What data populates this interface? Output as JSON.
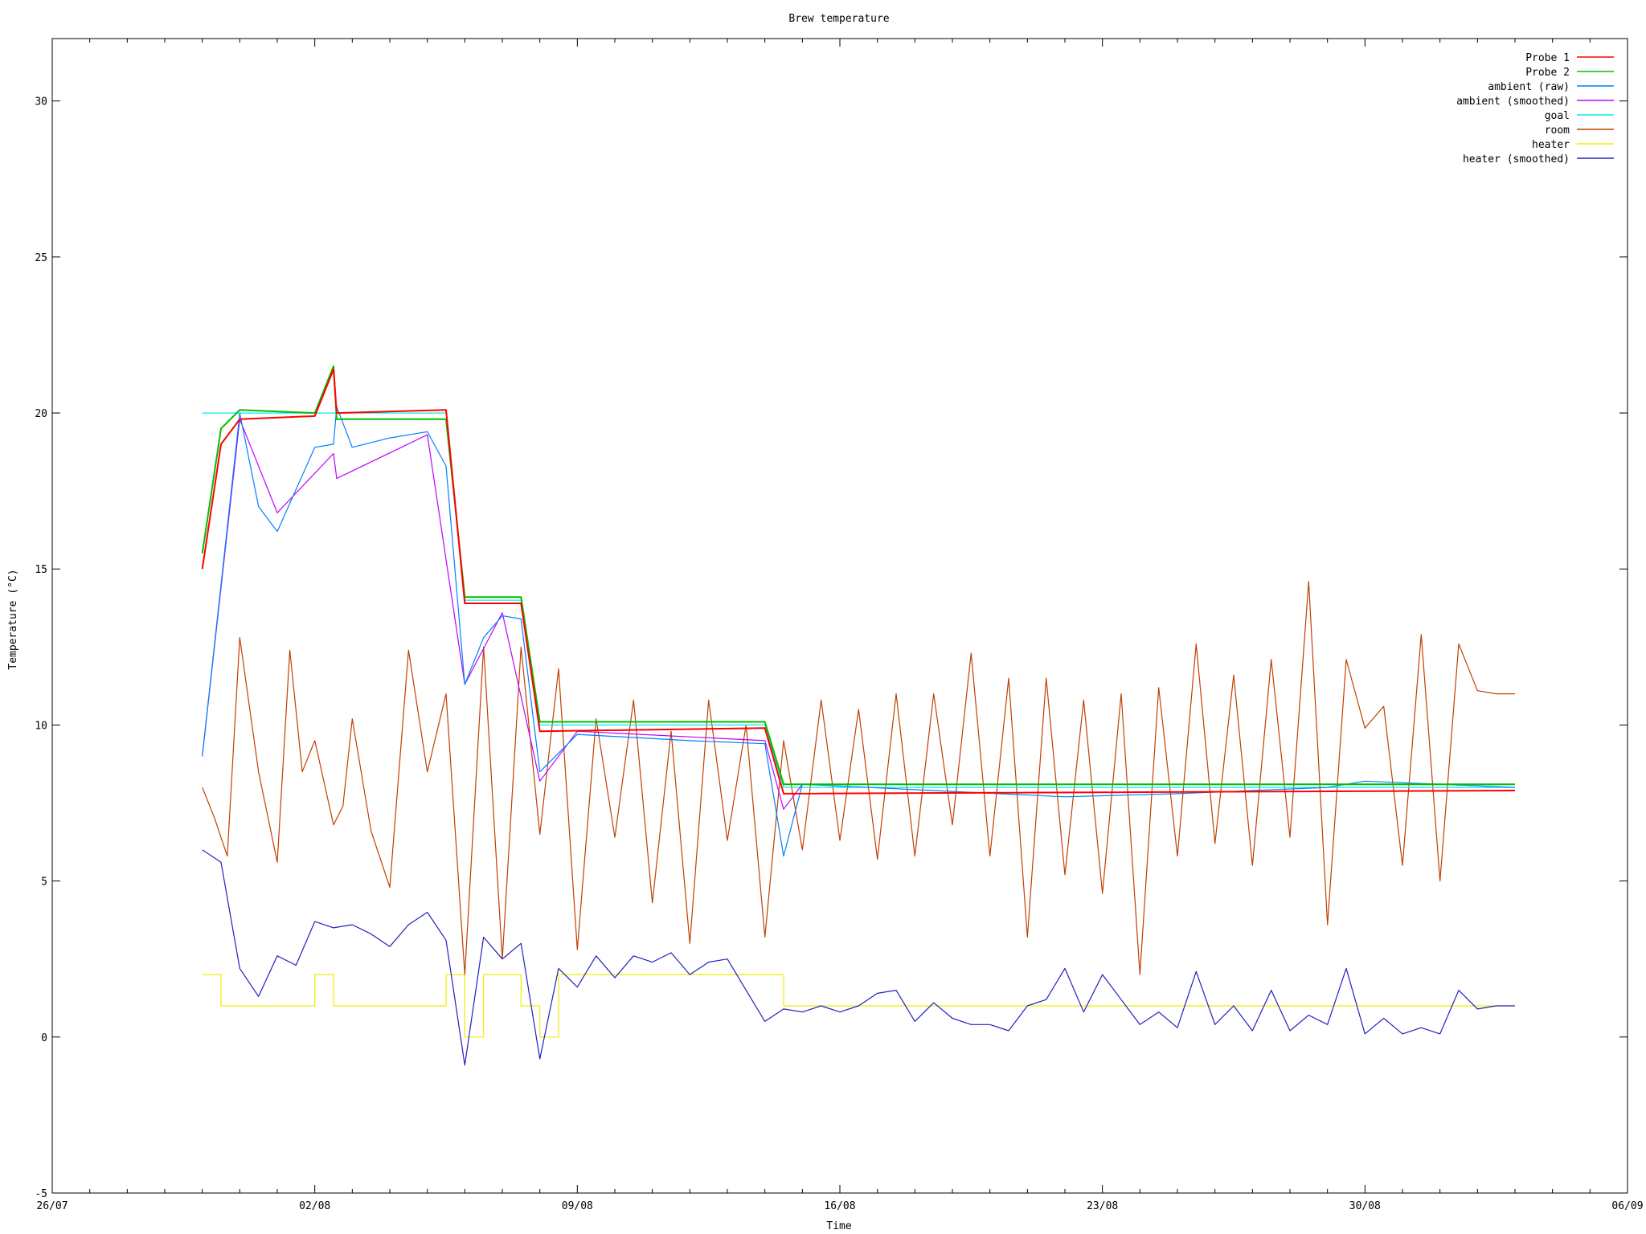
{
  "chart_data": {
    "type": "line",
    "title": "Brew temperature",
    "xlabel": "Time",
    "ylabel": "Temperature (°C)",
    "xlim": [
      "2013-07-26",
      "2013-09-06"
    ],
    "ylim": [
      -5,
      32
    ],
    "x_ticks": [
      "26/07",
      "02/08",
      "09/08",
      "16/08",
      "23/08",
      "30/08",
      "06/09"
    ],
    "y_ticks": [
      -5,
      0,
      5,
      10,
      15,
      20,
      25,
      30
    ],
    "grid": false,
    "legend_position": "top-right",
    "colors": {
      "probe1": "#ff0000",
      "probe2": "#00c000",
      "ambient_raw": "#0080ff",
      "ambient_smoothed": "#c000ff",
      "goal": "#00eeee",
      "room": "#c04000",
      "heater": "#eeee00",
      "heater_smoothed": "#2020c0"
    },
    "series": [
      {
        "name": "Probe 1",
        "x": [
          "2013-07-30",
          "2013-07-30 12:00",
          "2013-07-31",
          "2013-08-02",
          "2013-08-02 12:00",
          "2013-08-02 14:00",
          "2013-08-05 12:00",
          "2013-08-06",
          "2013-08-07 12:00",
          "2013-08-08",
          "2013-08-14",
          "2013-08-14 12:00",
          "2013-09-03"
        ],
        "values": [
          15,
          19,
          19.8,
          19.9,
          21.4,
          20,
          20.1,
          13.9,
          13.9,
          9.8,
          9.9,
          7.8,
          7.9
        ]
      },
      {
        "name": "Probe 2",
        "x": [
          "2013-07-30",
          "2013-07-30 12:00",
          "2013-07-31",
          "2013-08-02",
          "2013-08-02 12:00",
          "2013-08-02 14:00",
          "2013-08-05 12:00",
          "2013-08-06",
          "2013-08-07 12:00",
          "2013-08-08",
          "2013-08-14",
          "2013-08-14 12:00",
          "2013-09-03"
        ],
        "values": [
          15.5,
          19.5,
          20.1,
          20,
          21.5,
          19.8,
          19.8,
          14.1,
          14.1,
          10.1,
          10.1,
          8.1,
          8.1
        ]
      },
      {
        "name": "ambient (raw)",
        "x": [
          "2013-07-30",
          "2013-07-31",
          "2013-07-31 12:00",
          "2013-08-01",
          "2013-08-02",
          "2013-08-02 12:00",
          "2013-08-02 14:00",
          "2013-08-03",
          "2013-08-04",
          "2013-08-05",
          "2013-08-05 12:00",
          "2013-08-06",
          "2013-08-06 12:00",
          "2013-08-07",
          "2013-08-07 12:00",
          "2013-08-08",
          "2013-08-09",
          "2013-08-12",
          "2013-08-14",
          "2013-08-14 12:00",
          "2013-08-15",
          "2013-08-22",
          "2013-08-25",
          "2013-08-29",
          "2013-08-30",
          "2013-09-03"
        ],
        "values": [
          9,
          20,
          17,
          16.2,
          18.9,
          19,
          20.2,
          18.9,
          19.2,
          19.4,
          18.3,
          11.3,
          12.8,
          13.5,
          13.4,
          8.5,
          9.7,
          9.5,
          9.4,
          5.8,
          8.1,
          7.7,
          7.8,
          8,
          8.2,
          8
        ]
      },
      {
        "name": "ambient (smoothed)",
        "x": [
          "2013-07-30",
          "2013-07-31",
          "2013-08-01",
          "2013-08-02 12:00",
          "2013-08-02 14:00",
          "2013-08-05",
          "2013-08-06",
          "2013-08-07",
          "2013-08-08",
          "2013-08-09",
          "2013-08-14",
          "2013-08-14 12:00",
          "2013-08-15",
          "2013-09-03"
        ],
        "values": [
          9,
          19.8,
          16.8,
          18.7,
          17.9,
          19.3,
          11.3,
          13.6,
          8.2,
          9.8,
          9.5,
          7.3,
          8.1,
          8.1
        ]
      },
      {
        "name": "goal",
        "x": [
          "2013-07-30",
          "2013-08-05 12:00",
          "2013-08-06",
          "2013-08-07 12:00",
          "2013-08-08",
          "2013-08-14",
          "2013-08-14 12:00",
          "2013-09-03"
        ],
        "values": [
          20,
          20,
          14,
          14,
          10,
          10,
          8,
          8
        ]
      },
      {
        "name": "room",
        "x": [
          "2013-07-30",
          "2013-07-30 08:00",
          "2013-07-30 16:00",
          "2013-07-31",
          "2013-07-31 12:00",
          "2013-08-01",
          "2013-08-01 08:00",
          "2013-08-01 16:00",
          "2013-08-02",
          "2013-08-02 12:00",
          "2013-08-02 18:00",
          "2013-08-03",
          "2013-08-03 12:00",
          "2013-08-04",
          "2013-08-04 12:00",
          "2013-08-05",
          "2013-08-05 12:00",
          "2013-08-06",
          "2013-08-06 12:00",
          "2013-08-07",
          "2013-08-07 12:00",
          "2013-08-08",
          "2013-08-08 12:00",
          "2013-08-09",
          "2013-08-09 12:00",
          "2013-08-10",
          "2013-08-10 12:00",
          "2013-08-11",
          "2013-08-11 12:00",
          "2013-08-12",
          "2013-08-12 12:00",
          "2013-08-13",
          "2013-08-13 12:00",
          "2013-08-14",
          "2013-08-14 12:00",
          "2013-08-15",
          "2013-08-15 12:00",
          "2013-08-16",
          "2013-08-16 12:00",
          "2013-08-17",
          "2013-08-17 12:00",
          "2013-08-18",
          "2013-08-18 12:00",
          "2013-08-19",
          "2013-08-19 12:00",
          "2013-08-20",
          "2013-08-20 12:00",
          "2013-08-21",
          "2013-08-21 12:00",
          "2013-08-22",
          "2013-08-22 12:00",
          "2013-08-23",
          "2013-08-23 12:00",
          "2013-08-24",
          "2013-08-24 12:00",
          "2013-08-25",
          "2013-08-25 12:00",
          "2013-08-26",
          "2013-08-26 12:00",
          "2013-08-27",
          "2013-08-27 12:00",
          "2013-08-28",
          "2013-08-28 12:00",
          "2013-08-29",
          "2013-08-29 12:00",
          "2013-08-30",
          "2013-08-30 12:00",
          "2013-08-31",
          "2013-08-31 12:00",
          "2013-09-01",
          "2013-09-01 12:00",
          "2013-09-02",
          "2013-09-02 12:00",
          "2013-09-03"
        ],
        "values": [
          8,
          7,
          5.8,
          12.8,
          8.5,
          5.6,
          12.4,
          8.5,
          9.5,
          6.8,
          7.4,
          10.2,
          6.6,
          4.8,
          12.4,
          8.5,
          11,
          2,
          12.5,
          2.5,
          12.5,
          6.5,
          11.8,
          2.8,
          10.2,
          6.4,
          10.8,
          4.3,
          9.8,
          3,
          10.8,
          6.3,
          10,
          3.2,
          9.5,
          6,
          10.8,
          6.3,
          10.5,
          5.7,
          11,
          5.8,
          11,
          6.8,
          12.3,
          5.8,
          11.5,
          3.2,
          11.5,
          5.2,
          10.8,
          4.6,
          11,
          2,
          11.2,
          5.8,
          12.6,
          6.2,
          11.6,
          5.5,
          12.1,
          6.4,
          14.6,
          3.6,
          12.1,
          9.9,
          10.6,
          5.5,
          12.9,
          5,
          12.6,
          11.1,
          11,
          11
        ]
      },
      {
        "name": "heater",
        "x": [
          "2013-07-30",
          "2013-07-30 12:00",
          "2013-08-02",
          "2013-08-02 12:00",
          "2013-08-05 12:00",
          "2013-08-06",
          "2013-08-06 12:00",
          "2013-08-07 12:00",
          "2013-08-08",
          "2013-08-08 12:00",
          "2013-08-14",
          "2013-08-14 12:00",
          "2013-09-03"
        ],
        "values": [
          2,
          1,
          2,
          1,
          2,
          0,
          2,
          1,
          0,
          2,
          2,
          1,
          1
        ]
      },
      {
        "name": "heater (smoothed)",
        "x": [
          "2013-07-30",
          "2013-07-30 12:00",
          "2013-07-31",
          "2013-07-31 12:00",
          "2013-08-01",
          "2013-08-01 12:00",
          "2013-08-02",
          "2013-08-02 12:00",
          "2013-08-03",
          "2013-08-03 12:00",
          "2013-08-04",
          "2013-08-04 12:00",
          "2013-08-05",
          "2013-08-05 12:00",
          "2013-08-06",
          "2013-08-06 12:00",
          "2013-08-07",
          "2013-08-07 12:00",
          "2013-08-08",
          "2013-08-08 12:00",
          "2013-08-09",
          "2013-08-09 12:00",
          "2013-08-10",
          "2013-08-10 12:00",
          "2013-08-11",
          "2013-08-11 12:00",
          "2013-08-12",
          "2013-08-12 12:00",
          "2013-08-13",
          "2013-08-13 12:00",
          "2013-08-14",
          "2013-08-14 12:00",
          "2013-08-15",
          "2013-08-15 12:00",
          "2013-08-16",
          "2013-08-16 12:00",
          "2013-08-17",
          "2013-08-17 12:00",
          "2013-08-18",
          "2013-08-18 12:00",
          "2013-08-19",
          "2013-08-19 12:00",
          "2013-08-20",
          "2013-08-20 12:00",
          "2013-08-21",
          "2013-08-21 12:00",
          "2013-08-22",
          "2013-08-22 12:00",
          "2013-08-23",
          "2013-08-23 12:00",
          "2013-08-24",
          "2013-08-24 12:00",
          "2013-08-25",
          "2013-08-25 12:00",
          "2013-08-26",
          "2013-08-26 12:00",
          "2013-08-27",
          "2013-08-27 12:00",
          "2013-08-28",
          "2013-08-28 12:00",
          "2013-08-29",
          "2013-08-29 12:00",
          "2013-08-30",
          "2013-08-30 12:00",
          "2013-08-31",
          "2013-08-31 12:00",
          "2013-09-01",
          "2013-09-01 12:00",
          "2013-09-02",
          "2013-09-02 12:00",
          "2013-09-03"
        ],
        "values": [
          6,
          5.6,
          2.2,
          1.3,
          2.6,
          2.3,
          3.7,
          3.5,
          3.6,
          3.3,
          2.9,
          3.6,
          4,
          3.1,
          -0.9,
          3.2,
          2.5,
          3,
          -0.7,
          2.2,
          1.6,
          2.6,
          1.9,
          2.6,
          2.4,
          2.7,
          2,
          2.4,
          2.5,
          1.5,
          0.5,
          0.9,
          0.8,
          1,
          0.8,
          1,
          1.4,
          1.5,
          0.5,
          1.1,
          0.6,
          0.4,
          0.4,
          0.2,
          1,
          1.2,
          2.2,
          0.8,
          2.0,
          1.2,
          0.4,
          0.8,
          0.3,
          2.1,
          0.4,
          1.0,
          0.2,
          1.5,
          0.2,
          0.7,
          0.4,
          2.2,
          0.1,
          0.6,
          0.1,
          0.3,
          0.1,
          1.5,
          0.9,
          1.0,
          1.0
        ]
      }
    ]
  }
}
